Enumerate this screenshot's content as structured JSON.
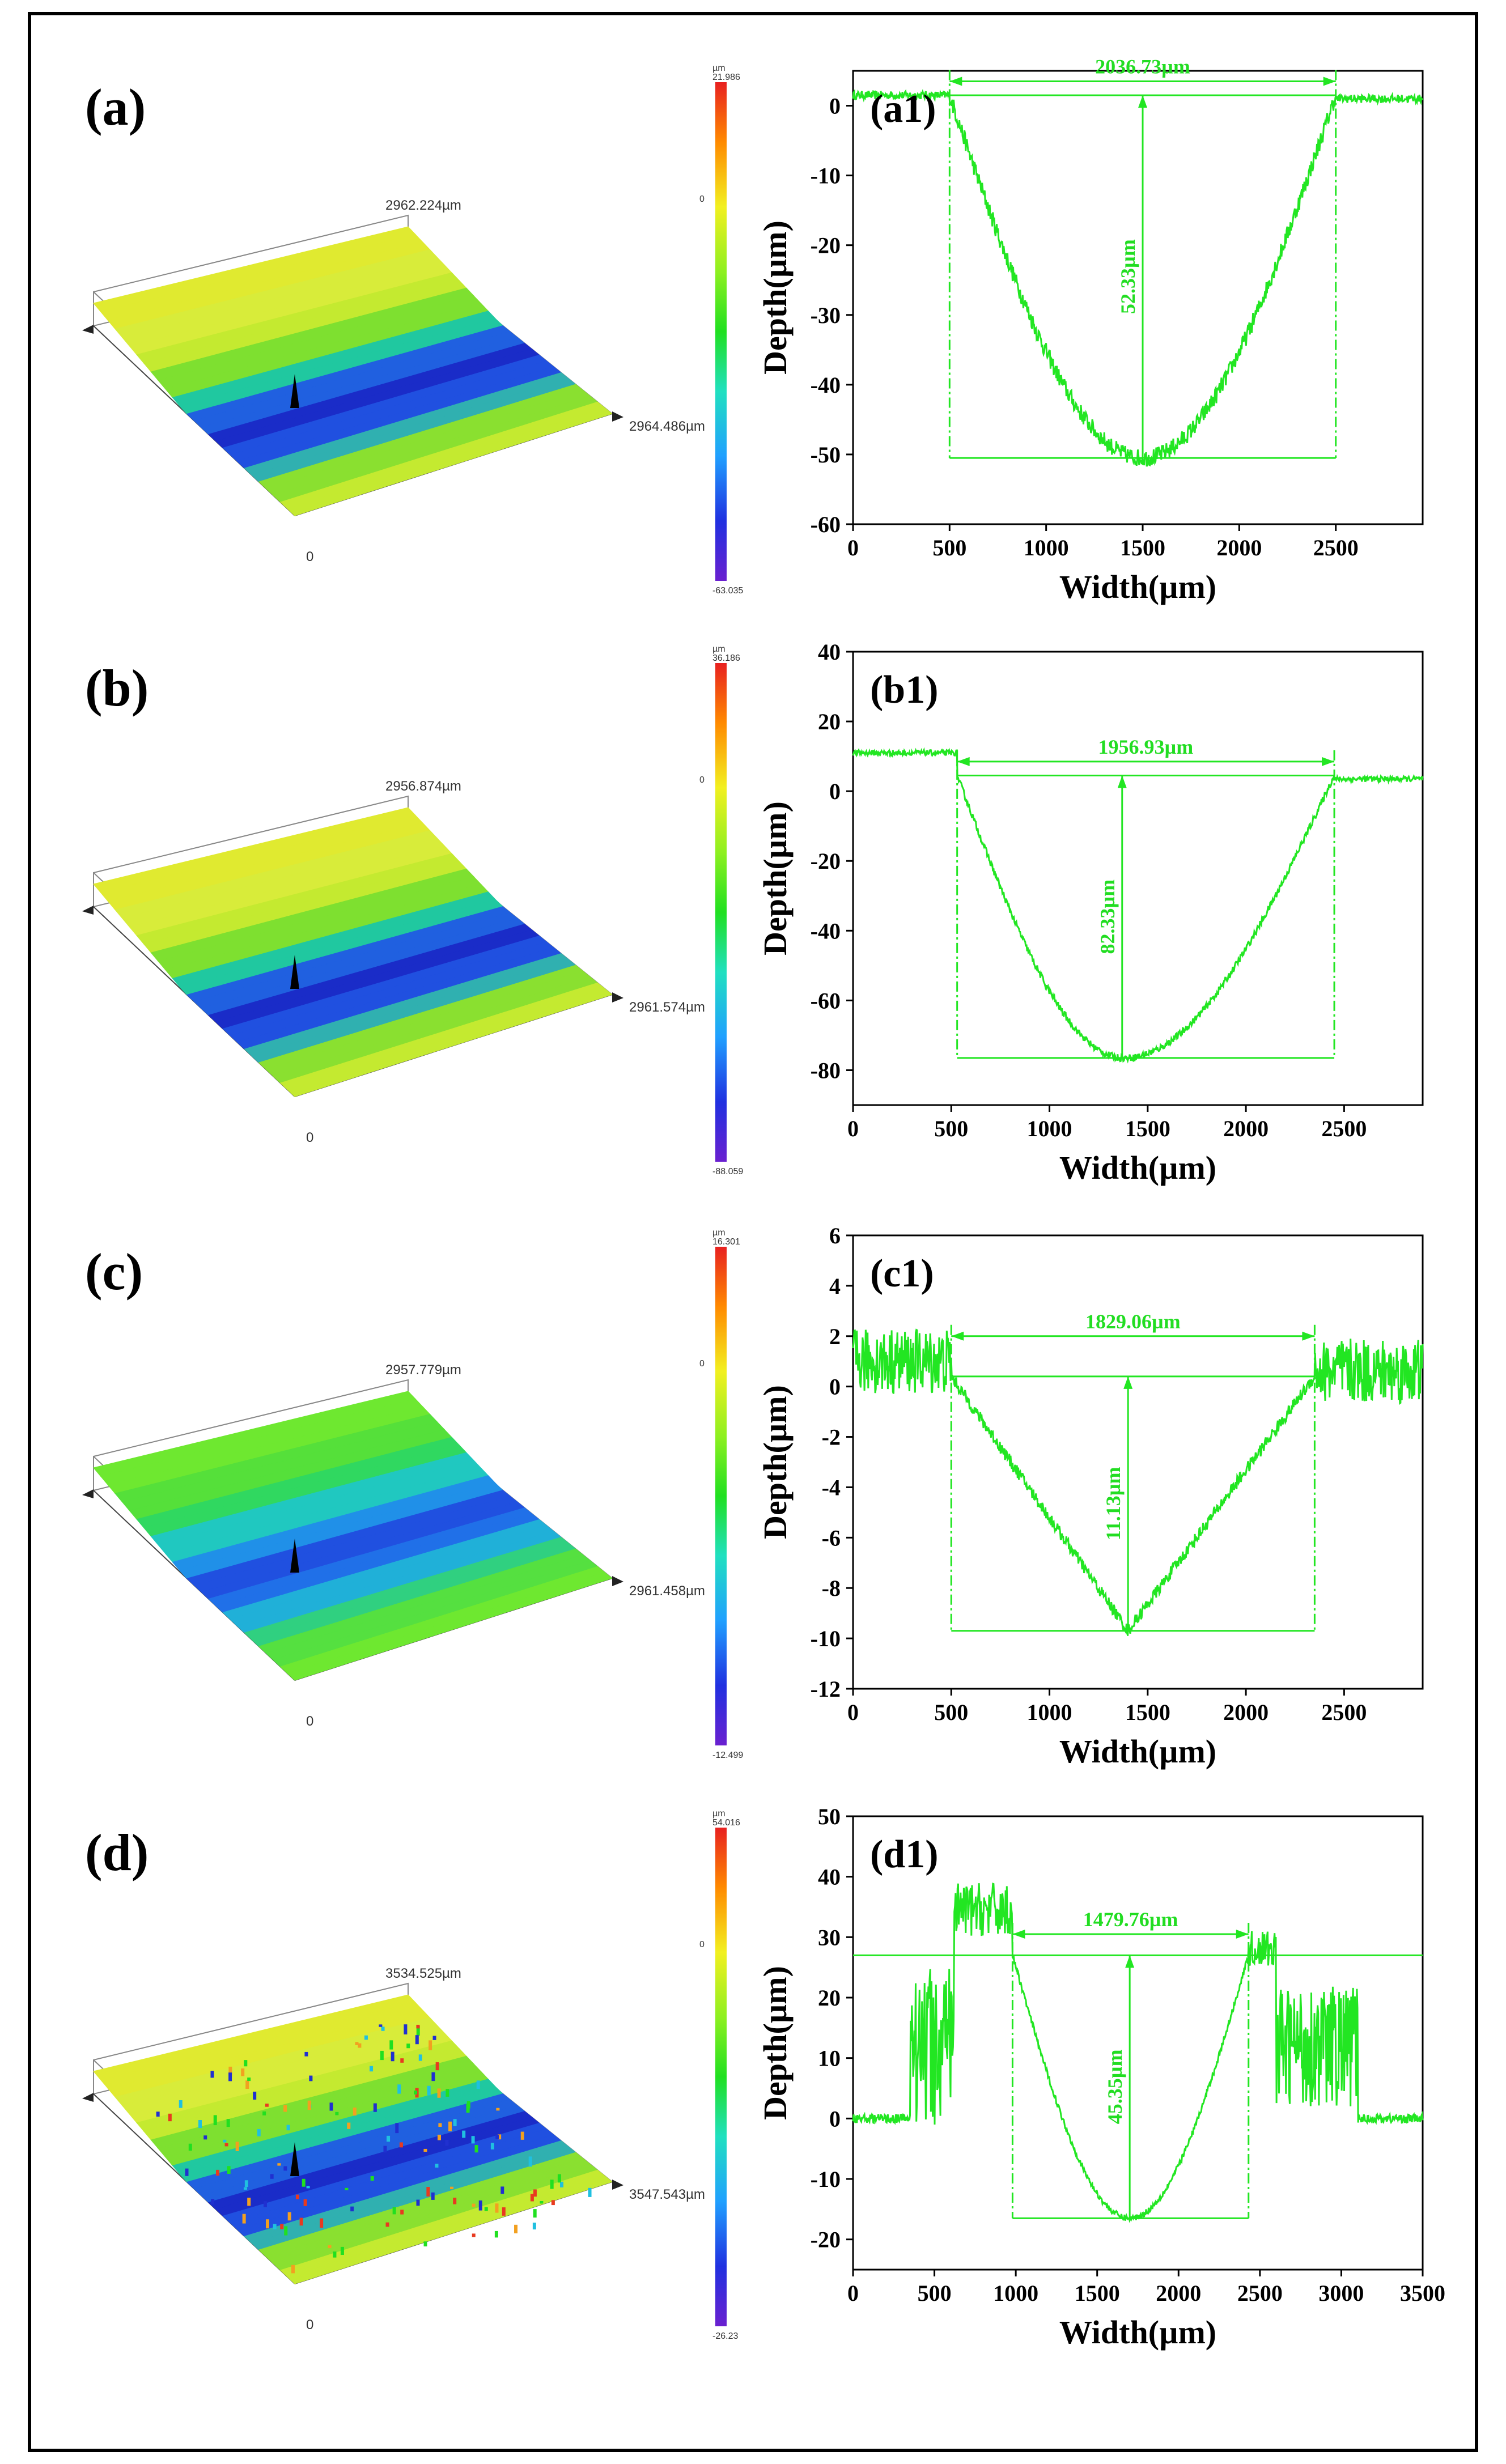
{
  "colors": {
    "trace": "#22e622",
    "frame": "#000000",
    "surface_hi": "#d8ec3a",
    "surface_lo": "#1a2cc8"
  },
  "rows": [
    {
      "id": "a",
      "surface": {
        "label": "(a)",
        "length_label": "2962.224µm",
        "width_label": "2964.486µm",
        "origin_label": "0",
        "colorbar": {
          "unit": "µm",
          "max": "21.986",
          "mid": "0",
          "min": "-63.035"
        }
      },
      "chart_data": {
        "type": "line",
        "label": "(a1)",
        "xlabel": "Width(µm)",
        "ylabel": "Depth(µm)",
        "xlim": [
          0,
          2950
        ],
        "ylim": [
          -60,
          5
        ],
        "xticks": [
          0,
          500,
          1000,
          1500,
          2000,
          2500
        ],
        "yticks": [
          0,
          -10,
          -20,
          -30,
          -40,
          -50,
          -60
        ],
        "profile": {
          "left": 500,
          "right": 2500,
          "surface": 1.5,
          "bottom": -50.5,
          "center": 1500,
          "leftMin": 1.0,
          "rightMin": 1.0,
          "noise": 0.6,
          "jag": 2.5
        },
        "width_annotation": {
          "text": "2036.73µm",
          "y": 3.5
        },
        "depth_annotation": {
          "text": "52.33µm",
          "x": 1500,
          "y_top": 1.5,
          "y_bottom": -50.5
        }
      }
    },
    {
      "id": "b",
      "surface": {
        "label": "(b)",
        "length_label": "2956.874µm",
        "width_label": "2961.574µm",
        "origin_label": "0",
        "colorbar": {
          "unit": "µm",
          "max": "36.186",
          "mid": "0",
          "min": "-88.059"
        }
      },
      "chart_data": {
        "type": "line",
        "label": "(b1)",
        "xlabel": "Width(µm)",
        "ylabel": "Depth(µm)",
        "xlim": [
          0,
          2900
        ],
        "ylim": [
          -90,
          40
        ],
        "xticks": [
          0,
          500,
          1000,
          1500,
          2000,
          2500
        ],
        "yticks": [
          40,
          20,
          0,
          -20,
          -40,
          -60,
          -80
        ],
        "profile": {
          "left": 530,
          "right": 2450,
          "surface": 4.5,
          "bottom": -76.5,
          "center": 1380,
          "leftMin": 11.0,
          "rightMin": 3.5,
          "noise": 0.8,
          "jag": 2.0
        },
        "width_annotation": {
          "text": "1956.93µm",
          "y": 8.5
        },
        "depth_annotation": {
          "text": "82.33µm",
          "x": 1370,
          "y_top": 4.5,
          "y_bottom": -76.5
        }
      }
    },
    {
      "id": "c",
      "surface": {
        "label": "(c)",
        "length_label": "2957.779µm",
        "width_label": "2961.458µm",
        "origin_label": "0",
        "colorbar": {
          "unit": "µm",
          "max": "16.301",
          "mid": "0",
          "min": "-12.499"
        }
      },
      "chart_data": {
        "type": "line",
        "label": "(c1)",
        "xlabel": "Width(µm)",
        "ylabel": "Depth(µm)",
        "xlim": [
          0,
          2900
        ],
        "ylim": [
          -12,
          6
        ],
        "xticks": [
          0,
          500,
          1000,
          1500,
          2000,
          2500
        ],
        "yticks": [
          6,
          4,
          2,
          0,
          -2,
          -4,
          -6,
          -8,
          -10,
          -12
        ],
        "profile": {
          "left": 500,
          "right": 2350,
          "surface": 0.4,
          "bottom": -9.7,
          "center": 1400,
          "leftMin": 1.0,
          "rightMin": 0.6,
          "noise": 1.3,
          "jag": 0.5
        },
        "width_annotation": {
          "text": "1829.06µm",
          "y": 2.0
        },
        "depth_annotation": {
          "text": "11.13µm",
          "x": 1400,
          "y_top": 0.4,
          "y_bottom": -9.7
        }
      }
    },
    {
      "id": "d",
      "surface": {
        "label": "(d)",
        "length_label": "3534.525µm",
        "width_label": "3547.543µm",
        "origin_label": "0",
        "colorbar": {
          "unit": "µm",
          "max": "54.016",
          "mid": "0",
          "min": "-26.23"
        }
      },
      "chart_data": {
        "type": "line",
        "label": "(d1)",
        "xlabel": "Width(µm)",
        "ylabel": "Depth(µm)",
        "xlim": [
          0,
          3500
        ],
        "ylim": [
          -25,
          50
        ],
        "xticks": [
          0,
          500,
          1000,
          1500,
          2000,
          2500,
          3000,
          3500
        ],
        "yticks": [
          50,
          40,
          30,
          20,
          10,
          0,
          -10,
          -20
        ],
        "profile": {
          "left": 980,
          "right": 2430,
          "surface": 27,
          "bottom": -16.5,
          "center": 1700,
          "leftMin": 0,
          "rightMin": 0,
          "noise": 1.0,
          "jag": 1.0,
          "rough": true
        },
        "width_annotation": {
          "text": "1479.76µm",
          "y": 30.5
        },
        "depth_annotation": {
          "text": "45.35µm",
          "x": 1700,
          "y_top": 27,
          "y_bottom": -16.5
        }
      }
    }
  ]
}
